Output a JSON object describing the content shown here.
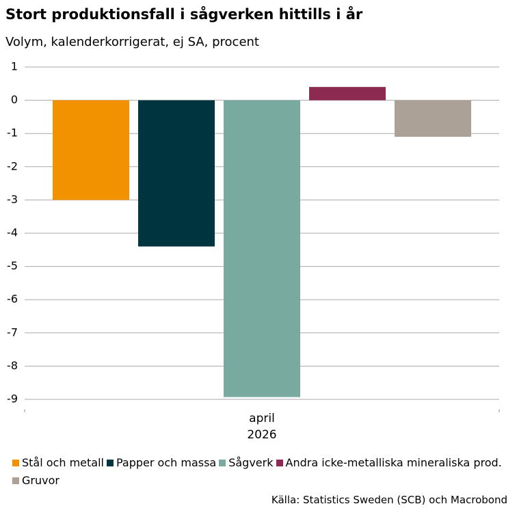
{
  "chart_data": {
    "type": "bar",
    "title": "Stort produktionsfall i sågverken hittills i år",
    "subtitle": "Volym, kalenderkorrigerat, ej SA, procent",
    "categories": [
      "april 2026"
    ],
    "series": [
      {
        "name": "Stål och metall",
        "color": "#f39200",
        "values": [
          -3.0
        ]
      },
      {
        "name": "Papper och massa",
        "color": "#00343f",
        "values": [
          -4.4
        ]
      },
      {
        "name": "Sågverk",
        "color": "#78aa9f",
        "values": [
          -8.93
        ]
      },
      {
        "name": "Andra icke-metalliska mineraliska prod.",
        "color": "#8c2a52",
        "values": [
          0.4
        ]
      },
      {
        "name": "Gruvor",
        "color": "#aca196",
        "values": [
          -1.1
        ]
      }
    ],
    "ylim": [
      -9.3,
      1
    ],
    "yticks": [
      1,
      0,
      -1,
      -2,
      -3,
      -4,
      -5,
      -6,
      -7,
      -8,
      -9
    ],
    "grid": true,
    "source": "Källa: Statistics Sweden (SCB) och Macrobond"
  }
}
